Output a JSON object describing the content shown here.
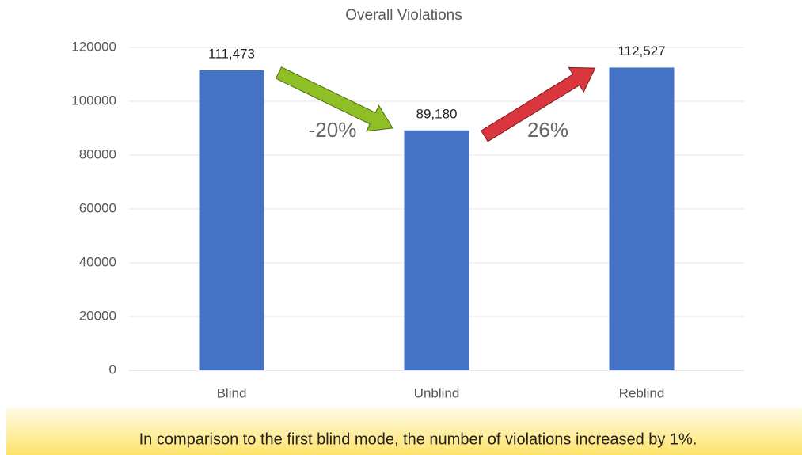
{
  "chart_data": {
    "type": "bar",
    "title": "Overall Violations",
    "categories": [
      "Blind",
      "Unblind",
      "Reblind"
    ],
    "values": [
      111473,
      89180,
      112527
    ],
    "value_labels": [
      "111,473",
      "89,180",
      "112,527"
    ],
    "color": "#4472c4",
    "ylim": [
      0,
      120000
    ],
    "yticks": [
      0,
      20000,
      40000,
      60000,
      80000,
      100000,
      120000
    ],
    "grid": true,
    "annotations": [
      "-20%",
      "26%"
    ],
    "caption": "In comparison to the first blind mode, the number of violations increased by 1%."
  }
}
